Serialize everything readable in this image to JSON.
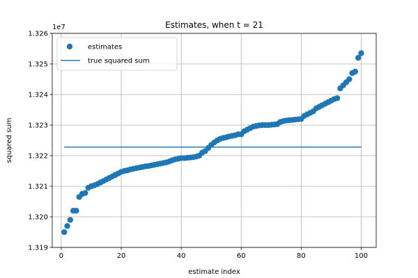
{
  "chart_data": {
    "type": "scatter",
    "title": "Estimates, when t = 21",
    "xlabel": "estimate index",
    "ylabel": "squared sum",
    "y_offset_label": "1e7",
    "xlim": [
      -3,
      105
    ],
    "ylim": [
      1.319,
      1.326
    ],
    "x_ticks": [
      0,
      20,
      40,
      60,
      80,
      100
    ],
    "x_tick_labels": [
      "0",
      "20",
      "40",
      "60",
      "80",
      "100"
    ],
    "y_ticks": [
      1.319,
      1.32,
      1.321,
      1.322,
      1.323,
      1.324,
      1.325,
      1.326
    ],
    "y_tick_labels": [
      "1.319",
      "1.320",
      "1.321",
      "1.322",
      "1.323",
      "1.324",
      "1.325",
      "1.326"
    ],
    "grid": true,
    "legend_position": "top-left",
    "legend": [
      {
        "label": "estimates",
        "kind": "marker",
        "color": "#1f77b4"
      },
      {
        "label": "true squared sum",
        "kind": "line",
        "color": "#1f77b4"
      }
    ],
    "series": [
      {
        "name": "estimates",
        "kind": "scatter",
        "color": "#1f77b4",
        "x": [
          1,
          2,
          3,
          4,
          5,
          6,
          7,
          8,
          9,
          10,
          11,
          12,
          13,
          14,
          15,
          16,
          17,
          18,
          19,
          20,
          21,
          22,
          23,
          24,
          25,
          26,
          27,
          28,
          29,
          30,
          31,
          32,
          33,
          34,
          35,
          36,
          37,
          38,
          39,
          40,
          41,
          42,
          43,
          44,
          45,
          46,
          47,
          48,
          49,
          50,
          51,
          52,
          53,
          54,
          55,
          56,
          57,
          58,
          59,
          60,
          61,
          62,
          63,
          64,
          65,
          66,
          67,
          68,
          69,
          70,
          71,
          72,
          73,
          74,
          75,
          76,
          77,
          78,
          79,
          80,
          81,
          82,
          83,
          84,
          85,
          86,
          87,
          88,
          89,
          90,
          91,
          92,
          93,
          94,
          95,
          96,
          97,
          98,
          99,
          100
        ],
        "y": [
          1.3195,
          1.3197,
          1.3199,
          1.3202,
          1.3202,
          1.32065,
          1.32075,
          1.32078,
          1.32095,
          1.321,
          1.32103,
          1.32107,
          1.32112,
          1.32117,
          1.32122,
          1.32127,
          1.32132,
          1.32137,
          1.32142,
          1.32147,
          1.3215,
          1.32152,
          1.32155,
          1.32157,
          1.32159,
          1.32161,
          1.32163,
          1.32165,
          1.32166,
          1.32168,
          1.3217,
          1.32172,
          1.32174,
          1.32176,
          1.32178,
          1.32181,
          1.32185,
          1.32188,
          1.3219,
          1.32192,
          1.32192,
          1.32193,
          1.32194,
          1.32195,
          1.32197,
          1.322,
          1.3221,
          1.32215,
          1.32225,
          1.32235,
          1.32243,
          1.3225,
          1.32255,
          1.32258,
          1.3226,
          1.32263,
          1.32265,
          1.32267,
          1.3227,
          1.3227,
          1.3228,
          1.32285,
          1.3229,
          1.32295,
          1.32297,
          1.32299,
          1.323,
          1.323,
          1.323,
          1.32301,
          1.32302,
          1.32303,
          1.3231,
          1.32313,
          1.32315,
          1.32316,
          1.32317,
          1.32318,
          1.32319,
          1.3232,
          1.3233,
          1.32335,
          1.3234,
          1.32345,
          1.32355,
          1.3236,
          1.32365,
          1.3237,
          1.32375,
          1.3238,
          1.32385,
          1.32388,
          1.3242,
          1.3243,
          1.3244,
          1.3245,
          1.3247,
          1.32475,
          1.3252,
          1.32535
        ]
      },
      {
        "name": "true squared sum",
        "kind": "line",
        "color": "#1f77b4",
        "x": [
          1,
          100
        ],
        "y": [
          1.32228,
          1.32228
        ]
      }
    ]
  }
}
